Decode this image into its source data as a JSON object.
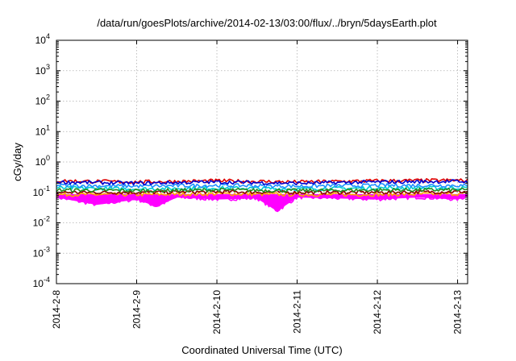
{
  "chart_data": {
    "type": "line",
    "title": "/data/run/goesPlots/archive/2014-02-13/03:00/flux/../bryn/5daysEarth.plot",
    "xlabel": "Coordinated Universal Time (UTC)",
    "ylabel": "cGy/day",
    "yscale": "log",
    "ylim": [
      0.0001,
      10000
    ],
    "xlim": [
      "2014-02-08T00:00",
      "2014-02-13T03:00"
    ],
    "grid": true,
    "y_ticks": [
      {
        "value": 0.0001,
        "base": "10",
        "exp": "-4"
      },
      {
        "value": 0.001,
        "base": "10",
        "exp": "-3"
      },
      {
        "value": 0.01,
        "base": "10",
        "exp": "-2"
      },
      {
        "value": 0.1,
        "base": "10",
        "exp": "-1"
      },
      {
        "value": 1,
        "base": "10",
        "exp": "0"
      },
      {
        "value": 10,
        "base": "10",
        "exp": "1"
      },
      {
        "value": 100,
        "base": "10",
        "exp": "2"
      },
      {
        "value": 1000,
        "base": "10",
        "exp": "3"
      },
      {
        "value": 10000,
        "base": "10",
        "exp": "4"
      }
    ],
    "x_ticks": [
      {
        "value": "2014-02-08T00:00",
        "label": "2014-2-8"
      },
      {
        "value": "2014-02-09T00:00",
        "label": "2014-2-9"
      },
      {
        "value": "2014-02-10T00:00",
        "label": "2014-2-10"
      },
      {
        "value": "2014-02-11T00:00",
        "label": "2014-2-11"
      },
      {
        "value": "2014-02-12T00:00",
        "label": "2014-2-12"
      },
      {
        "value": "2014-02-13T00:00",
        "label": "2014-2-13"
      }
    ],
    "series": [
      {
        "color": "#ff00ff",
        "fill": true,
        "x": [
          "2014-02-08T00:00",
          "2014-02-08T12:00",
          "2014-02-09T00:00",
          "2014-02-09T06:00",
          "2014-02-09T12:00",
          "2014-02-10T00:00",
          "2014-02-10T12:00",
          "2014-02-10T18:00",
          "2014-02-11T00:00",
          "2014-02-11T12:00",
          "2014-02-12T00:00",
          "2014-02-12T12:00",
          "2014-02-13T00:00",
          "2014-02-13T03:00"
        ],
        "y": [
          0.07,
          0.04,
          0.06,
          0.035,
          0.07,
          0.06,
          0.065,
          0.025,
          0.07,
          0.065,
          0.06,
          0.07,
          0.06,
          0.075
        ]
      },
      {
        "color": "#ffa500",
        "x": [
          "2014-02-08T00:00",
          "2014-02-09T00:00",
          "2014-02-10T00:00",
          "2014-02-11T00:00",
          "2014-02-12T00:00",
          "2014-02-13T00:00",
          "2014-02-13T03:00"
        ],
        "y": [
          0.085,
          0.085,
          0.09,
          0.085,
          0.085,
          0.09,
          0.09
        ]
      },
      {
        "color": "#8b0000",
        "x": [
          "2014-02-08T00:00",
          "2014-02-09T00:00",
          "2014-02-10T00:00",
          "2014-02-11T00:00",
          "2014-02-12T00:00",
          "2014-02-13T00:00",
          "2014-02-13T03:00"
        ],
        "y": [
          0.1,
          0.1,
          0.105,
          0.1,
          0.1,
          0.105,
          0.105
        ]
      },
      {
        "color": "#00ced1",
        "x": [
          "2014-02-08T00:00",
          "2014-02-09T00:00",
          "2014-02-10T00:00",
          "2014-02-11T00:00",
          "2014-02-12T00:00",
          "2014-02-13T00:00",
          "2014-02-13T03:00"
        ],
        "y": [
          0.14,
          0.13,
          0.14,
          0.13,
          0.14,
          0.14,
          0.14
        ]
      },
      {
        "color": "#228b22",
        "x": [
          "2014-02-08T00:00",
          "2014-02-09T00:00",
          "2014-02-10T00:00",
          "2014-02-11T00:00",
          "2014-02-12T00:00",
          "2014-02-13T00:00",
          "2014-02-13T03:00"
        ],
        "y": [
          0.12,
          0.115,
          0.12,
          0.115,
          0.12,
          0.12,
          0.12
        ]
      },
      {
        "color": "#1e90ff",
        "x": [
          "2014-02-08T00:00",
          "2014-02-09T00:00",
          "2014-02-10T00:00",
          "2014-02-11T00:00",
          "2014-02-12T00:00",
          "2014-02-13T00:00",
          "2014-02-13T03:00"
        ],
        "y": [
          0.17,
          0.16,
          0.17,
          0.16,
          0.17,
          0.17,
          0.16
        ]
      },
      {
        "color": "#e00000",
        "x": [
          "2014-02-08T00:00",
          "2014-02-09T00:00",
          "2014-02-10T00:00",
          "2014-02-11T00:00",
          "2014-02-12T00:00",
          "2014-02-13T00:00",
          "2014-02-13T03:00"
        ],
        "y": [
          0.24,
          0.22,
          0.24,
          0.22,
          0.24,
          0.25,
          0.24
        ]
      },
      {
        "color": "#0000cd",
        "x": [
          "2014-02-08T00:00",
          "2014-02-09T00:00",
          "2014-02-10T00:00",
          "2014-02-11T00:00",
          "2014-02-12T00:00",
          "2014-02-13T00:00",
          "2014-02-13T03:00"
        ],
        "y": [
          0.22,
          0.2,
          0.22,
          0.2,
          0.22,
          0.23,
          0.22
        ]
      }
    ]
  }
}
